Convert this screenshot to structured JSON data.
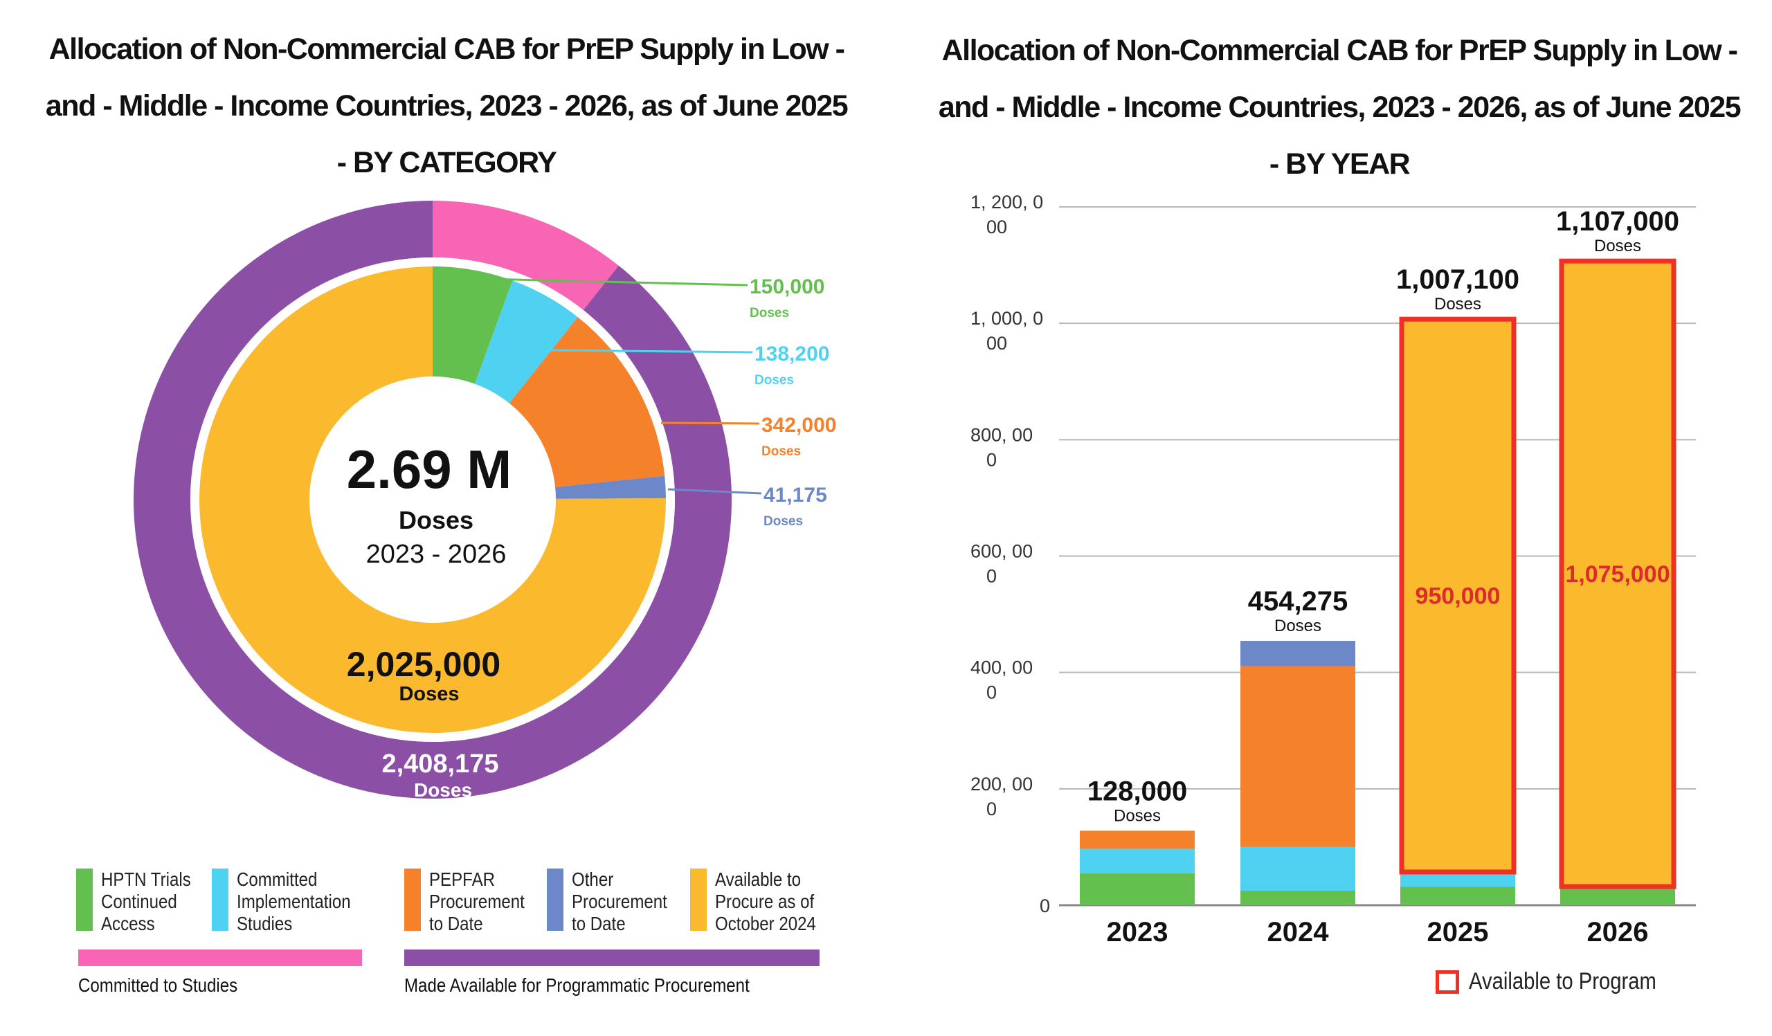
{
  "left_chart": {
    "title": "Allocation of Non-Commercial CAB for PrEP Supply in Low - and - Middle - Income Countries, 2023 - 2026, as of June 2025 - BY CATEGORY",
    "center": {
      "value": "2.69 M",
      "unit": "Doses",
      "range": "2023 - 2026"
    }
  },
  "right_chart": {
    "title": "Allocation of Non-Commercial CAB for PrEP Supply in Low - and - Middle - Income Countries, 2023 - 2026, as of June 2025 - BY YEAR",
    "available_legend": "Available to Program"
  },
  "legend": {
    "items": [
      {
        "label": "HPTN Trials\nContinued\nAccess",
        "color": "#63c04e"
      },
      {
        "label": "Committed\nImplementation\nStudies",
        "color": "#4fd2f2"
      },
      {
        "label": "PEPFAR\nProcurement\nto Date",
        "color": "#f5812a"
      },
      {
        "label": "Other\nProcurement\nto Date",
        "color": "#6c88c9"
      },
      {
        "label": "Available to\nProcure as of\nOctober 2024",
        "color": "#fbba2e"
      }
    ],
    "groups": [
      {
        "label": "Committed to Studies",
        "color": "#f765b4"
      },
      {
        "label": "Made Available for Programmatic Procurement",
        "color": "#8b4fa6"
      }
    ]
  },
  "chart_data": [
    {
      "type": "pie",
      "title": "Allocation of Non-Commercial CAB for PrEP Supply in Low - and - Middle - Income Countries, 2023 - 2026, as of June 2025 - BY CATEGORY",
      "inner_ring": [
        {
          "name": "HPTN Trials Continued Access",
          "value": 150000,
          "label": "150,000",
          "unit": "Doses",
          "color": "#63c04e"
        },
        {
          "name": "Committed Implementation Studies",
          "value": 138200,
          "label": "138,200",
          "unit": "Doses",
          "color": "#4fd2f2"
        },
        {
          "name": "PEPFAR Procurement to Date",
          "value": 342000,
          "label": "342,000",
          "unit": "Doses",
          "color": "#f5812a"
        },
        {
          "name": "Other Procurement to Date",
          "value": 41175,
          "label": "41,175",
          "unit": "Doses",
          "color": "#6c88c9"
        },
        {
          "name": "Available to Procure as of October 2024",
          "value": 2025000,
          "label": "2,025,000",
          "unit": "Doses",
          "color": "#fbba2e"
        }
      ],
      "outer_ring": [
        {
          "name": "Committed to Studies",
          "value": 288200,
          "color": "#f765b4"
        },
        {
          "name": "Made Available for Programmatic Procurement",
          "value": 2408175,
          "label": "2,408,175",
          "unit": "Doses",
          "color": "#8b4fa6"
        }
      ]
    },
    {
      "type": "bar",
      "stacked": true,
      "title": "Allocation of Non-Commercial CAB for PrEP Supply in Low - and - Middle - Income Countries, 2023 - 2026, as of June 2025 - BY YEAR",
      "categories": [
        "2023",
        "2024",
        "2025",
        "2026"
      ],
      "series": [
        {
          "name": "HPTN Trials Continued Access",
          "color": "#63c04e",
          "values": [
            55000,
            25000,
            32000,
            32000
          ]
        },
        {
          "name": "Committed Implementation Studies",
          "color": "#4fd2f2",
          "values": [
            42000,
            75000,
            25100,
            0
          ]
        },
        {
          "name": "PEPFAR Procurement to Date",
          "color": "#f5812a",
          "values": [
            31000,
            311000,
            0,
            0
          ]
        },
        {
          "name": "Other Procurement to Date",
          "color": "#6c88c9",
          "values": [
            0,
            43275,
            0,
            0
          ]
        },
        {
          "name": "Available to Procure as of October 2024",
          "color": "#fbba2e",
          "values": [
            0,
            0,
            950000,
            1075000
          ]
        }
      ],
      "totals": [
        "128,000",
        "454,275",
        "1,007,100",
        "1,107,000"
      ],
      "total_unit": "Doses",
      "available_to_program": [
        null,
        null,
        "950,000",
        "1,075,000"
      ],
      "y_ticks": [
        {
          "value": 0,
          "label": "0"
        },
        {
          "value": 200000,
          "label": "200, 00\n0"
        },
        {
          "value": 400000,
          "label": "400, 00\n0"
        },
        {
          "value": 600000,
          "label": "600, 00\n0"
        },
        {
          "value": 800000,
          "label": "800, 00\n0"
        },
        {
          "value": 1000000,
          "label": "1, 000, 0\n00"
        },
        {
          "value": 1200000,
          "label": "1, 200, 0\n00"
        }
      ],
      "ylim": [
        0,
        1200000
      ],
      "grid": true
    }
  ]
}
